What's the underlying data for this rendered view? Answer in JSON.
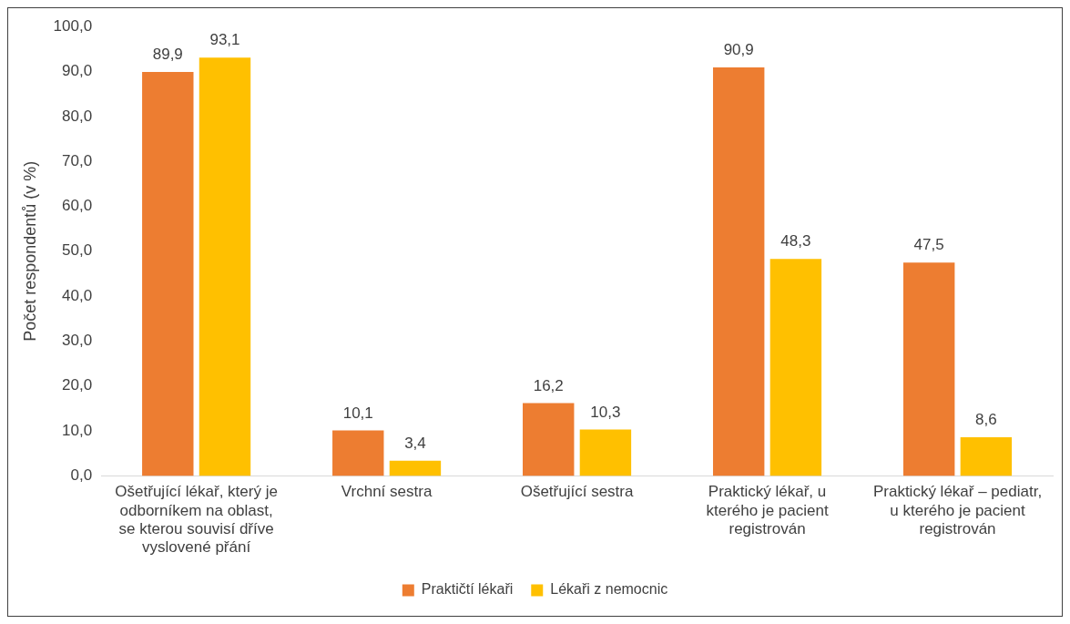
{
  "chart_data": {
    "type": "bar",
    "ylabel": "Počet respondentů (v %)",
    "categories": [
      "Ošetřující lékař, který je odborníkem na oblast, se kterou souvisí dříve vyslovené přání",
      "Vrchní sestra",
      "Ošetřující sestra",
      "Praktický lékař, u kterého je pacient registrován",
      "Praktický lékař – pediatr, u kterého je pacient registrován"
    ],
    "series": [
      {
        "name": "Praktičtí lékaři",
        "color": "#ed7d31",
        "values": [
          89.9,
          10.1,
          16.2,
          90.9,
          47.5
        ],
        "value_labels": [
          "89,9",
          "10,1",
          "16,2",
          "90,9",
          "47,5"
        ]
      },
      {
        "name": "Lékaři z nemocnic",
        "color": "#ffc000",
        "values": [
          93.1,
          3.4,
          10.3,
          48.3,
          8.6
        ],
        "value_labels": [
          "93,1",
          "3,4",
          "10,3",
          "48,3",
          "8,6"
        ]
      }
    ],
    "ylim": [
      0,
      100
    ],
    "yticks": [
      {
        "value": 0,
        "label": "0,0"
      },
      {
        "value": 10,
        "label": "10,0"
      },
      {
        "value": 20,
        "label": "20,0"
      },
      {
        "value": 30,
        "label": "30,0"
      },
      {
        "value": 40,
        "label": "40,0"
      },
      {
        "value": 50,
        "label": "50,0"
      },
      {
        "value": 60,
        "label": "60,0"
      },
      {
        "value": 70,
        "label": "70,0"
      },
      {
        "value": 80,
        "label": "80,0"
      },
      {
        "value": 90,
        "label": "90,0"
      },
      {
        "value": 100,
        "label": "100,0"
      }
    ],
    "grid": false,
    "legend": "bottom"
  }
}
